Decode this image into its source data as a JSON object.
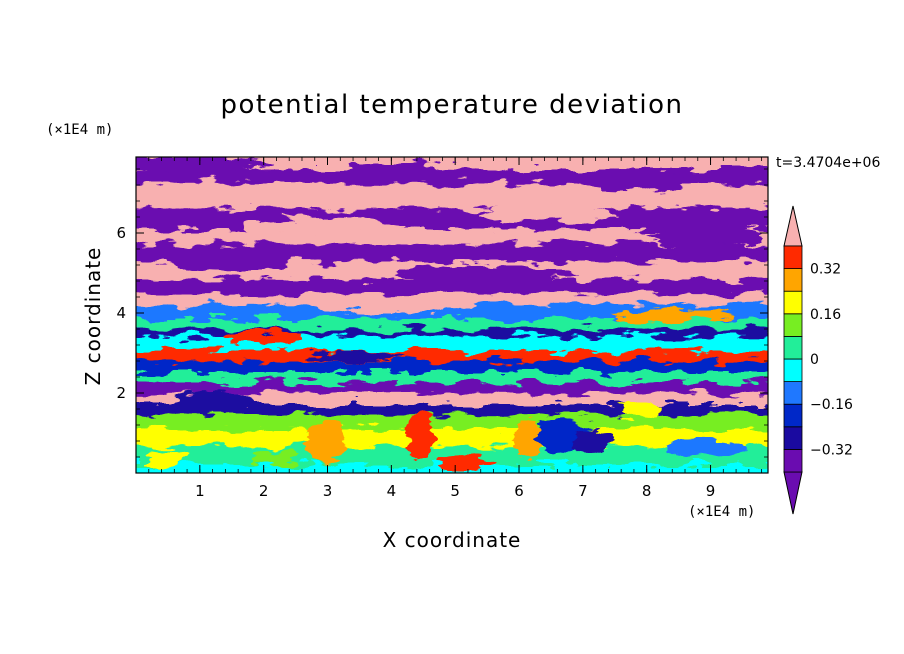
{
  "chart_data": {
    "type": "heatmap",
    "title": "potential temperature deviation",
    "xlabel": "X coordinate",
    "ylabel": "Z coordinate",
    "x_unit": "(×1E4 m)",
    "y_unit": "(×1E4 m)",
    "time_label": "t=3.4704e+06",
    "xlim": [
      0,
      9.9
    ],
    "ylim": [
      0,
      7.9
    ],
    "x_ticks": [
      "1",
      "2",
      "3",
      "4",
      "5",
      "6",
      "7",
      "8",
      "9"
    ],
    "y_ticks": [
      "2",
      "4",
      "6"
    ],
    "colorbar": {
      "levels": [
        -0.4,
        -0.32,
        -0.24,
        -0.16,
        -0.08,
        0,
        0.08,
        0.16,
        0.24,
        0.32,
        0.4
      ],
      "colors": [
        "#6a0cb0",
        "#1a0aa0",
        "#0028c8",
        "#1f78ff",
        "#00ffff",
        "#22ee99",
        "#77ee22",
        "#ffff00",
        "#ffa500",
        "#ff2a00",
        "#f8b0b0"
      ],
      "under_color": "#6a0cb0",
      "over_color": "#f8b0b0",
      "tick_labels": [
        "0.32",
        "0.16",
        "0",
        "−0.16",
        "−0.32"
      ]
    }
  }
}
